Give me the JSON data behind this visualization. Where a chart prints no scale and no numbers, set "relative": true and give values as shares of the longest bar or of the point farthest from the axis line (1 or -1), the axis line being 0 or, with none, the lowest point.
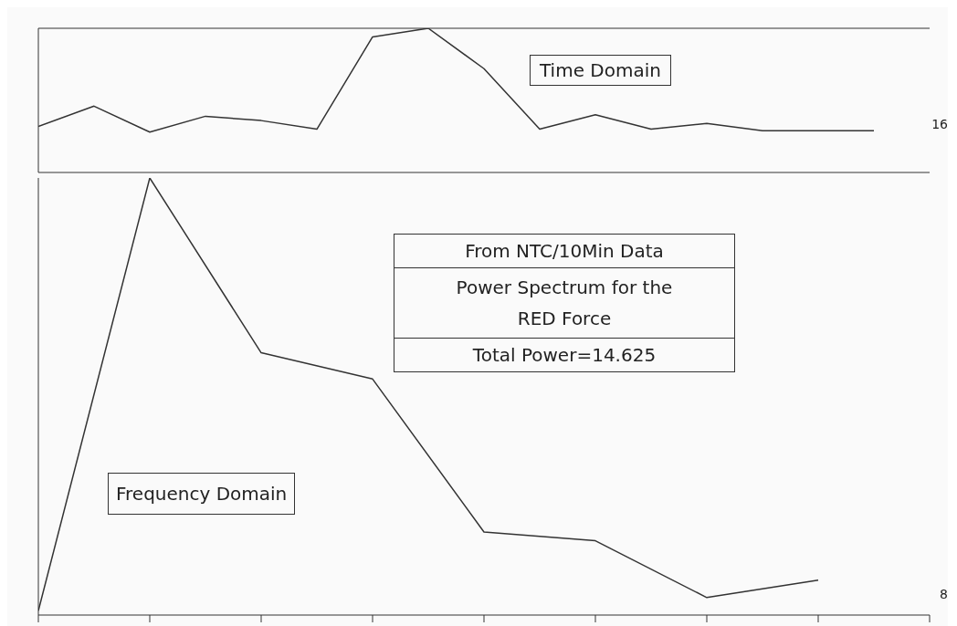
{
  "chart_data": [
    {
      "type": "line",
      "relative": true,
      "marker": "none",
      "categories": [
        null,
        null,
        null,
        null,
        null,
        null,
        null,
        null,
        null,
        null,
        null,
        null,
        null,
        null,
        null,
        null,
        null
      ],
      "series": [
        {
          "color": "#333333",
          "values": [
            0.32,
            0.46,
            0.28,
            0.39,
            0.36,
            0.3,
            0.94,
            1,
            0.72,
            0.3,
            0.4,
            0.3,
            0.34,
            0.29,
            0.29,
            0.29,
            null
          ]
        }
      ],
      "annotations": [
        "Time Domain",
        "16"
      ]
    },
    {
      "type": "line",
      "relative": true,
      "marker": "none",
      "categories": [
        null,
        null,
        null,
        null,
        null,
        null,
        null,
        null,
        null
      ],
      "series": [
        {
          "color": "#333333",
          "values": [
            0.01,
            1,
            0.6,
            0.54,
            0.19,
            0.17,
            0.04,
            0.08,
            null
          ]
        }
      ],
      "annotations": [
        "Frequency Domain",
        "From NTC/10Min Data",
        "Power Spectrum for the RED Force",
        "Total Power=14.625",
        "8"
      ]
    }
  ]
}
